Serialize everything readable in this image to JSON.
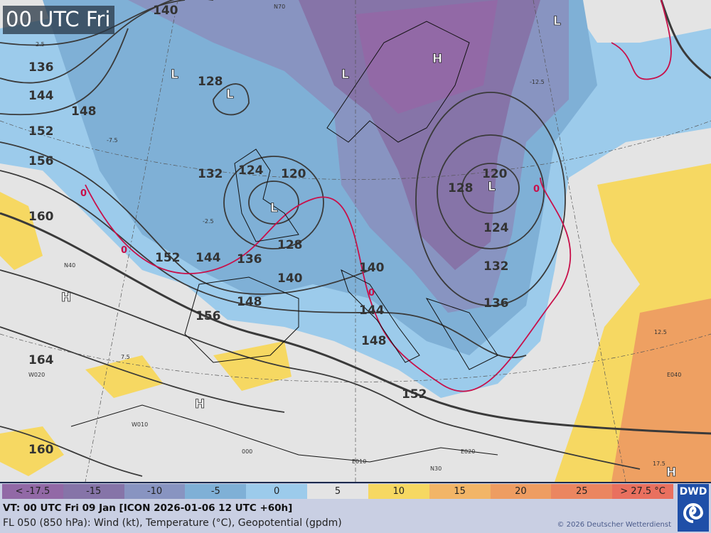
{
  "time_label": "00 UTC Fri",
  "legend": {
    "items": [
      {
        "label": "< -17.5",
        "color": "#9269a6"
      },
      {
        "label": "-15",
        "color": "#8674a8"
      },
      {
        "label": "-10",
        "color": "#8894c1"
      },
      {
        "label": "-5",
        "color": "#7fb0d6"
      },
      {
        "label": "0",
        "color": "#9ccbeb"
      },
      {
        "label": "5",
        "color": "#e4e4e4"
      },
      {
        "label": "10",
        "color": "#f6d862"
      },
      {
        "label": "15",
        "color": "#f2b567"
      },
      {
        "label": "20",
        "color": "#ee9d62"
      },
      {
        "label": "25",
        "color": "#eb8660"
      },
      {
        "label": "> 27.5 °C",
        "color": "#e9705f"
      }
    ]
  },
  "footer": {
    "valid_time": "VT: 00 UTC Fri  09 Jan [ICON 2026-01-06 12 UTC +60h]",
    "level": "FL 050 (850 hPa): Wind (kt), Temperature (°C), Geopotential (gpdm)",
    "copyright": "© 2026 Deutscher Wetterdienst",
    "logo": "DWD"
  },
  "contour_labels": [
    "140",
    "136",
    "144",
    "148",
    "152",
    "156",
    "160",
    "164",
    "160",
    "128",
    "132",
    "124",
    "120",
    "128",
    "136",
    "140",
    "144",
    "148",
    "152",
    "156",
    "120",
    "124",
    "128",
    "132",
    "136",
    "140",
    "144",
    "148",
    "152"
  ],
  "pressure_centers": [
    "L",
    "L",
    "L",
    "L",
    "L",
    "L",
    "H",
    "H",
    "H",
    "H"
  ],
  "freezing_labels": [
    "0",
    "0",
    "0",
    "0"
  ],
  "small_labels": [
    "2.5",
    "-2.5",
    "-7.5",
    "-12.5",
    "7.5",
    "12.5",
    "17.5",
    "W020",
    "W010",
    "E040",
    "E020",
    "E010",
    "N30",
    "N40",
    "N70",
    "000"
  ]
}
